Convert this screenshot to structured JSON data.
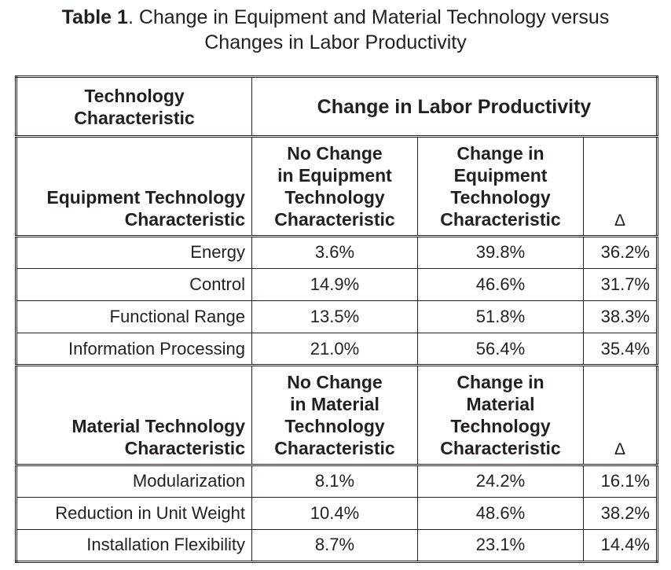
{
  "caption": {
    "label": "Table 1",
    "line1": ". Change in Equipment and Material Technology versus",
    "line2": "Changes in Labor Productivity"
  },
  "header": {
    "tech_char_line1": "Technology",
    "tech_char_line2": "Characteristic",
    "change_labor": "Change in Labor Productivity"
  },
  "equipment": {
    "heading_line1": "Equipment Technology",
    "heading_line2": "Characteristic",
    "col1_lines": [
      "No Change",
      "in Equipment",
      "Technology",
      "Characteristic"
    ],
    "col2_lines": [
      "Change in",
      "Equipment",
      "Technology",
      "Characteristic"
    ],
    "delta": "Δ",
    "rows": [
      {
        "label": "Energy",
        "no_change": "3.6%",
        "change": "39.8%",
        "delta": "36.2%"
      },
      {
        "label": "Control",
        "no_change": "14.9%",
        "change": "46.6%",
        "delta": "31.7%"
      },
      {
        "label": "Functional Range",
        "no_change": "13.5%",
        "change": "51.8%",
        "delta": "38.3%"
      },
      {
        "label": "Information Processing",
        "no_change": "21.0%",
        "change": "56.4%",
        "delta": "35.4%"
      }
    ]
  },
  "material": {
    "heading_line1": "Material Technology",
    "heading_line2": "Characteristic",
    "col1_lines": [
      "No Change",
      "in Material",
      "Technology",
      "Characteristic"
    ],
    "col2_lines": [
      "Change in",
      "Material",
      "Technology",
      "Characteristic"
    ],
    "delta": "Δ",
    "rows": [
      {
        "label": "Modularization",
        "no_change": "8.1%",
        "change": "24.2%",
        "delta": "16.1%"
      },
      {
        "label": "Reduction in Unit Weight",
        "no_change": "10.4%",
        "change": "48.6%",
        "delta": "38.2%"
      },
      {
        "label": "Installation Flexibility",
        "no_change": "8.7%",
        "change": "23.1%",
        "delta": "14.4%"
      }
    ]
  }
}
